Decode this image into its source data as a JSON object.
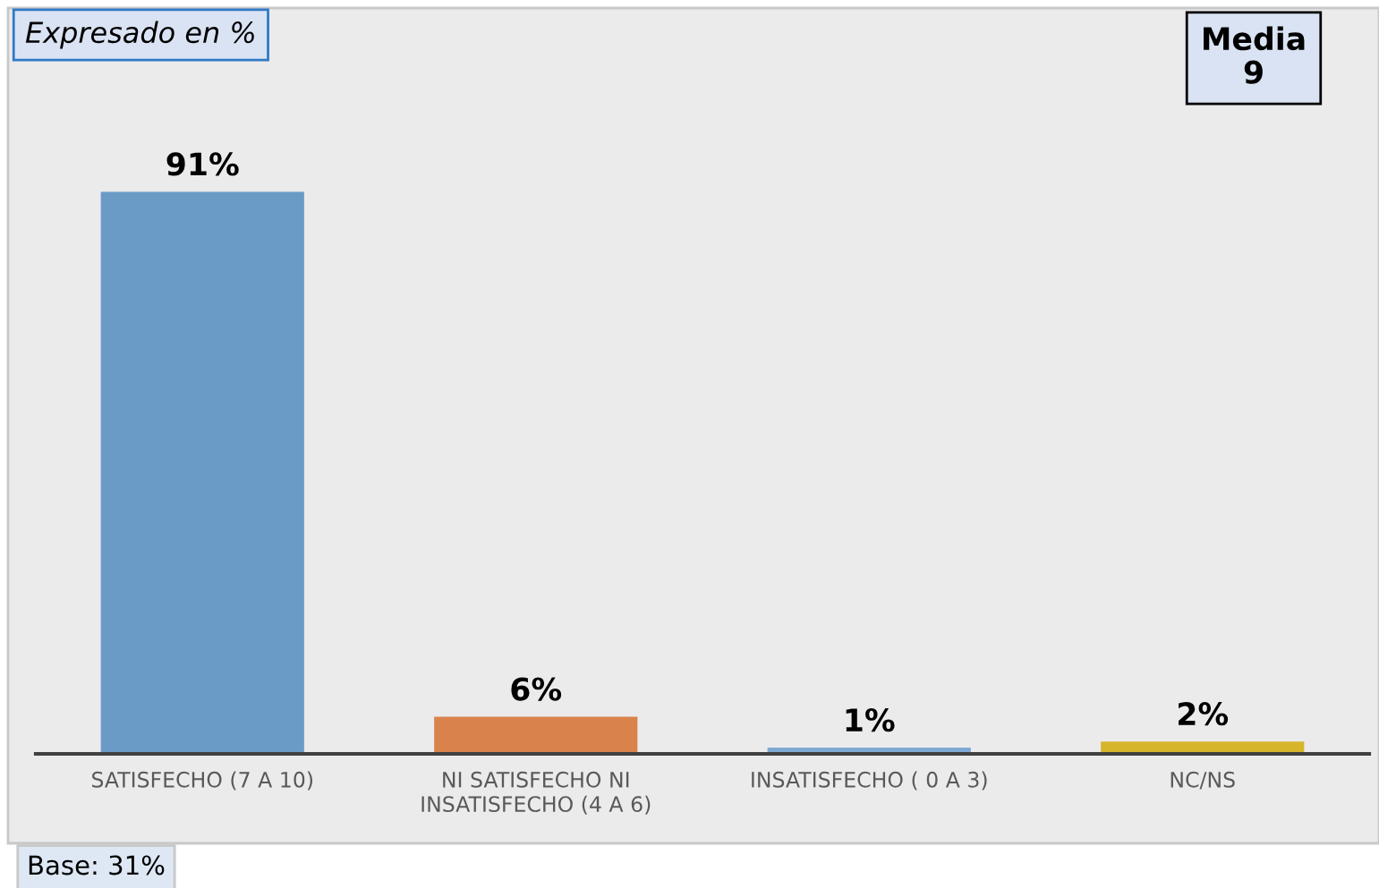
{
  "chart_data": {
    "type": "bar",
    "categories": [
      "SATISFECHO (7 A 10)",
      "NI SATISFECHO NI\nINSATISFECHO (4 A 6)",
      "INSATISFECHO ( 0 A 3)",
      "NC/NS"
    ],
    "values": [
      91,
      6,
      1,
      2
    ],
    "colors": [
      "#6a9bc7",
      "#d9824b",
      "#7fa9d4",
      "#d6b52a"
    ],
    "value_labels": [
      "91%",
      "6%",
      "1%",
      "2%"
    ],
    "tick_labels": "x",
    "annotations": [
      "Expresado en %",
      "Media\n9",
      "Base: 31%"
    ]
  }
}
